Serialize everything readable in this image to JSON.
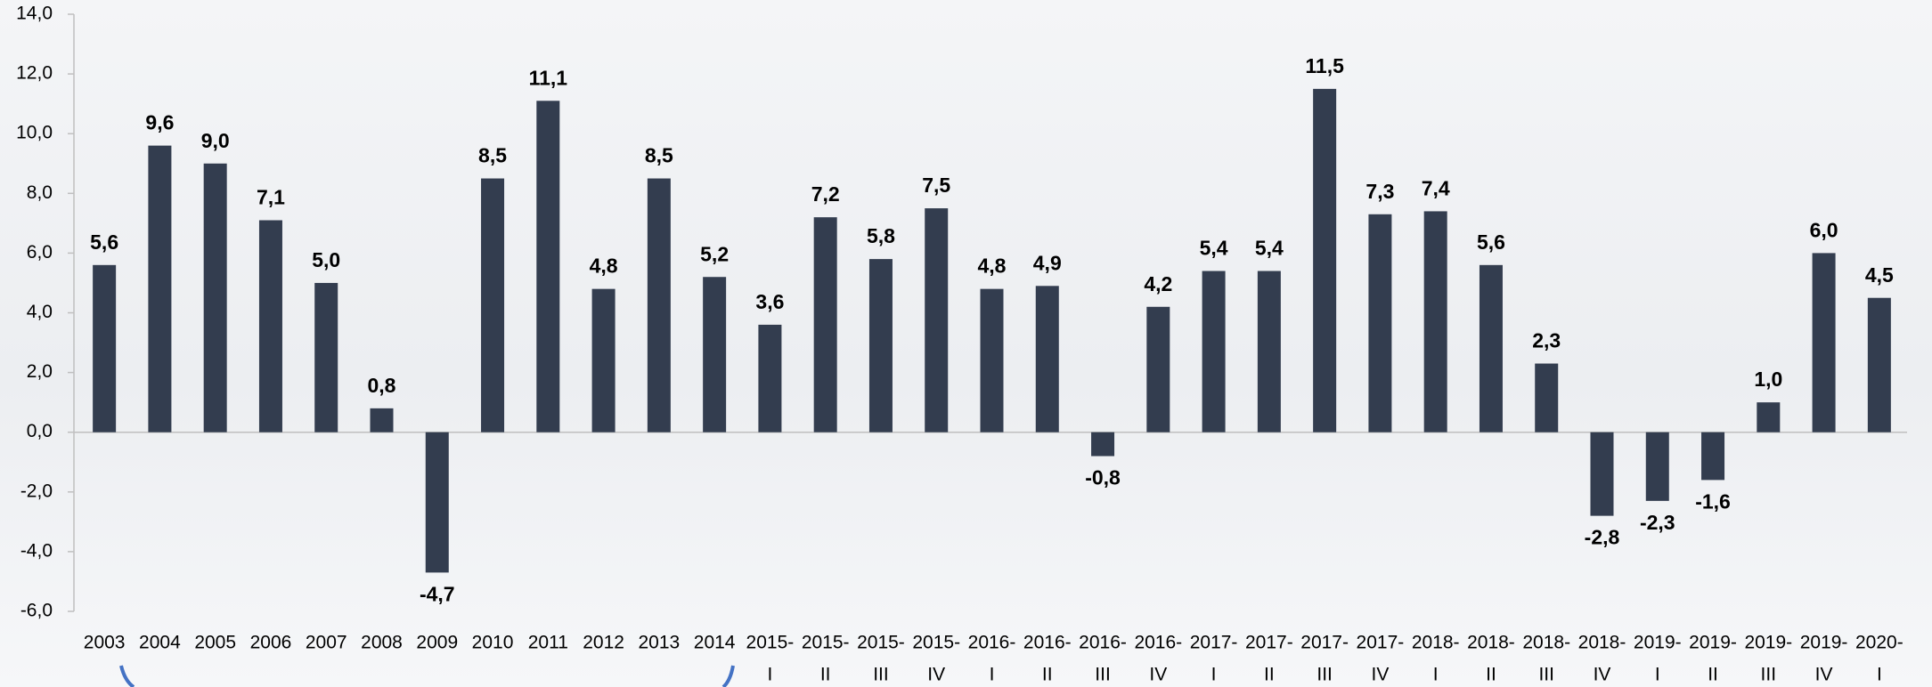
{
  "chart_data": {
    "type": "bar",
    "categories": [
      "2003",
      "2004",
      "2005",
      "2006",
      "2007",
      "2008",
      "2009",
      "2010",
      "2011",
      "2012",
      "2013",
      "2014",
      [
        "2015-",
        "I"
      ],
      [
        "2015-",
        "II"
      ],
      [
        "2015-",
        "III"
      ],
      [
        "2015-",
        "IV"
      ],
      [
        "2016-",
        "I"
      ],
      [
        "2016-",
        "II"
      ],
      [
        "2016-",
        "III"
      ],
      [
        "2016-",
        "IV"
      ],
      [
        "2017-",
        "I"
      ],
      [
        "2017-",
        "II"
      ],
      [
        "2017-",
        "III"
      ],
      [
        "2017-",
        "IV"
      ],
      [
        "2018-",
        "I"
      ],
      [
        "2018-",
        "II"
      ],
      [
        "2018-",
        "III"
      ],
      [
        "2018-",
        "IV"
      ],
      [
        "2019-",
        "I"
      ],
      [
        "2019-",
        "II"
      ],
      [
        "2019-",
        "III"
      ],
      [
        "2019-",
        "IV"
      ],
      [
        "2020-",
        "I"
      ]
    ],
    "values": [
      5.6,
      9.6,
      9.0,
      7.1,
      5.0,
      0.8,
      -4.7,
      8.5,
      11.1,
      4.8,
      8.5,
      5.2,
      3.6,
      7.2,
      5.8,
      7.5,
      4.8,
      4.9,
      -0.8,
      4.2,
      5.4,
      5.4,
      11.5,
      7.3,
      7.4,
      5.6,
      2.3,
      -2.8,
      -2.3,
      -1.6,
      1.0,
      6.0,
      4.5
    ],
    "value_labels": [
      "5,6",
      "9,6",
      "9,0",
      "7,1",
      "5,0",
      "0,8",
      "-4,7",
      "8,5",
      "11,1",
      "4,8",
      "8,5",
      "5,2",
      "3,6",
      "7,2",
      "5,8",
      "7,5",
      "4,8",
      "4,9",
      "-0,8",
      "4,2",
      "5,4",
      "5,4",
      "11,5",
      "7,3",
      "7,4",
      "5,6",
      "2,3",
      "-2,8",
      "-2,3",
      "-1,6",
      "1,0",
      "6,0",
      "4,5"
    ],
    "color": "#333d4f",
    "ylim": [
      -6,
      14
    ],
    "yticks": [
      {
        "value": -6,
        "label": "-6,0"
      },
      {
        "value": -4,
        "label": "-4,0"
      },
      {
        "value": -2,
        "label": "-2,0"
      },
      {
        "value": 0,
        "label": "0,0"
      },
      {
        "value": 2,
        "label": "2,0"
      },
      {
        "value": 4,
        "label": "4,0"
      },
      {
        "value": 6,
        "label": "6,0"
      },
      {
        "value": 8,
        "label": "8,0"
      },
      {
        "value": 10,
        "label": "10,0"
      },
      {
        "value": 12,
        "label": "12,0"
      },
      {
        "value": 14,
        "label": "14,0"
      }
    ],
    "grid": false
  }
}
